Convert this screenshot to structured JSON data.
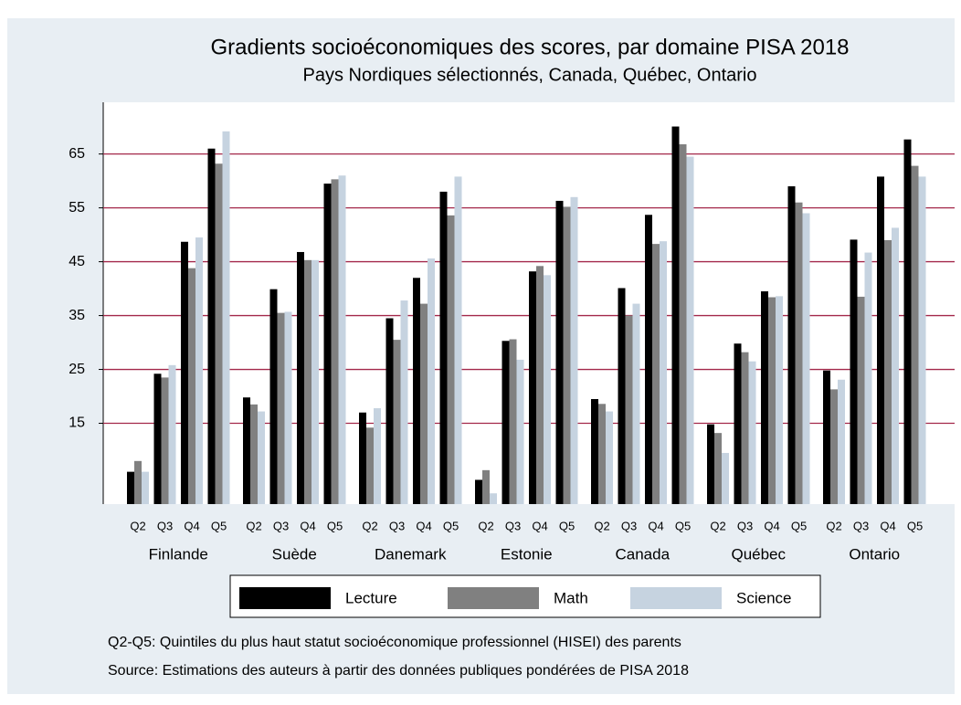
{
  "chart_data": {
    "type": "bar",
    "title": "Gradients socioéconomiques des scores, par domaine PISA 2018",
    "subtitle": "Pays Nordiques sélectionnés, Canada, Québec, Ontario",
    "groups": [
      "Finlande",
      "Suède",
      "Danemark",
      "Estonie",
      "Canada",
      "Québec",
      "Ontario"
    ],
    "categories": [
      "Q2",
      "Q3",
      "Q4",
      "Q5",
      "Q2",
      "Q3",
      "Q4",
      "Q5",
      "Q2",
      "Q3",
      "Q4",
      "Q5",
      "Q2",
      "Q3",
      "Q4",
      "Q5",
      "Q2",
      "Q3",
      "Q4",
      "Q5",
      "Q2",
      "Q3",
      "Q4",
      "Q5",
      "Q2",
      "Q3",
      "Q4",
      "Q5"
    ],
    "series": [
      {
        "name": "Lecture",
        "color": "#000000",
        "values": [
          6,
          24.2,
          48.7,
          66,
          19.8,
          39.9,
          46.8,
          59.5,
          17,
          34.5,
          42,
          58,
          4.5,
          30.3,
          43.2,
          56.3,
          19.5,
          40.1,
          53.7,
          70.1,
          14.8,
          29.8,
          39.5,
          59,
          24.8,
          49.1,
          60.8,
          67.7
        ]
      },
      {
        "name": "Math",
        "color": "#808080",
        "values": [
          8,
          23.5,
          43.8,
          63.2,
          18.5,
          35.5,
          45.3,
          60.3,
          14.2,
          30.5,
          37.2,
          53.6,
          6.3,
          30.6,
          44.2,
          55.2,
          18.6,
          35,
          48.3,
          66.8,
          13.2,
          28.2,
          38.4,
          56,
          21.3,
          38.5,
          49,
          62.8
        ]
      },
      {
        "name": "Science",
        "color": "#c6d3e0",
        "values": [
          6,
          25.8,
          49.5,
          69.2,
          17.2,
          35.7,
          45.3,
          61,
          17.8,
          37.8,
          45.6,
          60.8,
          2,
          26.8,
          42.5,
          57,
          17.2,
          37.2,
          48.8,
          64.5,
          9.5,
          26.5,
          38.6,
          54,
          23.1,
          46.7,
          51.3,
          60.8
        ]
      }
    ],
    "ylim": [
      0,
      74.6
    ],
    "yticks": [
      15,
      25,
      35,
      45,
      55,
      65
    ],
    "grid": true,
    "grid_color": "#a3284a",
    "notes": [
      "Q2-Q5: Quintiles du plus haut statut socioéconomique professionnel (HISEI) des parents",
      "Source: Estimations des auteurs à partir des données publiques pondérées de PISA 2018"
    ]
  }
}
